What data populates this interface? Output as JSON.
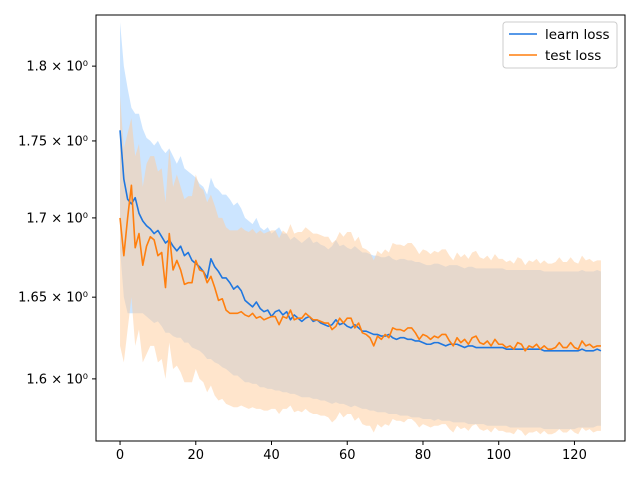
{
  "chart_data": {
    "type": "line",
    "title": "",
    "xlabel": "",
    "ylabel": "",
    "xlim": [
      -6.35,
      133.35
    ],
    "ylim": [
      1.563,
      1.835
    ],
    "yscale": "log",
    "grid": false,
    "legend_position": "top-right",
    "x_ticks": [
      0,
      20,
      40,
      60,
      80,
      100,
      120
    ],
    "x_tick_labels": [
      "0",
      "20",
      "40",
      "60",
      "80",
      "100",
      "120"
    ],
    "y_ticks": [
      1.6,
      1.65,
      1.7,
      1.75,
      1.8
    ],
    "y_tick_labels": [
      "1.6 × 10⁰",
      "1.65 × 10⁰",
      "1.7 × 10⁰",
      "1.75 × 10⁰",
      "1.8 × 10⁰"
    ],
    "x_start": 0,
    "x_step": 1,
    "series": [
      {
        "name": "learn loss",
        "color": "#1f77e0",
        "fill_color": "#99ccff",
        "values": [
          1.757,
          1.725,
          1.712,
          1.709,
          1.713,
          1.703,
          1.698,
          1.695,
          1.693,
          1.69,
          1.692,
          1.688,
          1.684,
          1.686,
          1.682,
          1.679,
          1.682,
          1.676,
          1.678,
          1.673,
          1.671,
          1.669,
          1.666,
          1.662,
          1.674,
          1.669,
          1.666,
          1.662,
          1.662,
          1.659,
          1.655,
          1.657,
          1.654,
          1.648,
          1.646,
          1.644,
          1.647,
          1.643,
          1.641,
          1.642,
          1.638,
          1.641,
          1.642,
          1.639,
          1.641,
          1.636,
          1.639,
          1.637,
          1.635,
          1.637,
          1.638,
          1.635,
          1.636,
          1.634,
          1.633,
          1.632,
          1.633,
          1.636,
          1.633,
          1.634,
          1.632,
          1.631,
          1.633,
          1.631,
          1.629,
          1.629,
          1.628,
          1.627,
          1.627,
          1.626,
          1.626,
          1.627,
          1.625,
          1.624,
          1.625,
          1.625,
          1.624,
          1.624,
          1.623,
          1.623,
          1.622,
          1.621,
          1.621,
          1.622,
          1.622,
          1.621,
          1.62,
          1.621,
          1.621,
          1.621,
          1.62,
          1.619,
          1.62,
          1.62,
          1.619,
          1.619,
          1.619,
          1.619,
          1.619,
          1.619,
          1.619,
          1.619,
          1.618,
          1.618,
          1.618,
          1.618,
          1.618,
          1.618,
          1.618,
          1.618,
          1.618,
          1.618,
          1.617,
          1.617,
          1.617,
          1.617,
          1.617,
          1.617,
          1.617,
          1.617,
          1.617,
          1.617,
          1.618,
          1.617,
          1.617,
          1.617,
          1.618,
          1.617
        ],
        "lower": [
          1.68,
          1.65,
          1.64,
          1.64,
          1.64,
          1.64,
          1.64,
          1.638,
          1.636,
          1.634,
          1.635,
          1.632,
          1.628,
          1.628,
          1.626,
          1.625,
          1.625,
          1.622,
          1.622,
          1.619,
          1.618,
          1.617,
          1.615,
          1.612,
          1.612,
          1.61,
          1.609,
          1.607,
          1.606,
          1.604,
          1.602,
          1.602,
          1.6,
          1.598,
          1.598,
          1.597,
          1.597,
          1.595,
          1.595,
          1.594,
          1.594,
          1.593,
          1.593,
          1.592,
          1.592,
          1.591,
          1.591,
          1.59,
          1.589,
          1.589,
          1.589,
          1.588,
          1.588,
          1.587,
          1.587,
          1.586,
          1.585,
          1.586,
          1.585,
          1.585,
          1.584,
          1.583,
          1.584,
          1.583,
          1.582,
          1.582,
          1.581,
          1.581,
          1.58,
          1.58,
          1.58,
          1.579,
          1.579,
          1.579,
          1.578,
          1.578,
          1.578,
          1.577,
          1.577,
          1.577,
          1.576,
          1.576,
          1.576,
          1.575,
          1.576,
          1.575,
          1.575,
          1.575,
          1.574,
          1.574,
          1.574,
          1.574,
          1.573,
          1.573,
          1.573,
          1.573,
          1.573,
          1.572,
          1.572,
          1.572,
          1.572,
          1.572,
          1.572,
          1.571,
          1.571,
          1.571,
          1.571,
          1.571,
          1.571,
          1.571,
          1.571,
          1.571,
          1.57,
          1.57,
          1.57,
          1.57,
          1.57,
          1.57,
          1.57,
          1.57,
          1.57,
          1.571,
          1.571,
          1.571,
          1.571,
          1.571,
          1.572,
          1.572
        ],
        "upper": [
          1.83,
          1.8,
          1.785,
          1.772,
          1.768,
          1.768,
          1.758,
          1.752,
          1.75,
          1.747,
          1.75,
          1.745,
          1.742,
          1.745,
          1.74,
          1.735,
          1.74,
          1.732,
          1.73,
          1.728,
          1.726,
          1.722,
          1.72,
          1.715,
          1.726,
          1.72,
          1.718,
          1.715,
          1.715,
          1.712,
          1.708,
          1.71,
          1.706,
          1.7,
          1.698,
          1.696,
          1.7,
          1.694,
          1.692,
          1.694,
          1.69,
          1.692,
          1.694,
          1.69,
          1.69,
          1.686,
          1.688,
          1.686,
          1.684,
          1.686,
          1.688,
          1.684,
          1.685,
          1.683,
          1.682,
          1.68,
          1.682,
          1.686,
          1.682,
          1.683,
          1.681,
          1.68,
          1.682,
          1.68,
          1.678,
          1.678,
          1.677,
          1.676,
          1.676,
          1.675,
          1.675,
          1.676,
          1.674,
          1.673,
          1.674,
          1.674,
          1.673,
          1.673,
          1.672,
          1.672,
          1.671,
          1.67,
          1.67,
          1.671,
          1.671,
          1.67,
          1.669,
          1.67,
          1.67,
          1.67,
          1.669,
          1.668,
          1.669,
          1.669,
          1.668,
          1.668,
          1.668,
          1.668,
          1.668,
          1.668,
          1.668,
          1.668,
          1.667,
          1.667,
          1.667,
          1.667,
          1.667,
          1.667,
          1.667,
          1.667,
          1.667,
          1.667,
          1.666,
          1.666,
          1.666,
          1.666,
          1.666,
          1.666,
          1.666,
          1.666,
          1.666,
          1.666,
          1.667,
          1.666,
          1.666,
          1.666,
          1.667,
          1.666
        ]
      },
      {
        "name": "test loss",
        "color": "#ff7f0e",
        "fill_color": "#ffcc99",
        "values": [
          1.7,
          1.676,
          1.7,
          1.721,
          1.681,
          1.69,
          1.67,
          1.682,
          1.688,
          1.686,
          1.676,
          1.678,
          1.656,
          1.69,
          1.667,
          1.673,
          1.667,
          1.658,
          1.659,
          1.659,
          1.673,
          1.667,
          1.666,
          1.659,
          1.663,
          1.656,
          1.648,
          1.649,
          1.642,
          1.64,
          1.64,
          1.64,
          1.641,
          1.639,
          1.638,
          1.64,
          1.637,
          1.638,
          1.636,
          1.637,
          1.638,
          1.638,
          1.633,
          1.638,
          1.637,
          1.642,
          1.636,
          1.637,
          1.637,
          1.64,
          1.638,
          1.636,
          1.636,
          1.635,
          1.634,
          1.634,
          1.63,
          1.632,
          1.637,
          1.634,
          1.637,
          1.637,
          1.631,
          1.634,
          1.628,
          1.627,
          1.625,
          1.62,
          1.626,
          1.624,
          1.627,
          1.625,
          1.631,
          1.63,
          1.63,
          1.629,
          1.631,
          1.631,
          1.628,
          1.624,
          1.627,
          1.626,
          1.624,
          1.626,
          1.625,
          1.627,
          1.627,
          1.623,
          1.62,
          1.625,
          1.622,
          1.624,
          1.621,
          1.625,
          1.626,
          1.622,
          1.621,
          1.623,
          1.62,
          1.624,
          1.621,
          1.621,
          1.619,
          1.62,
          1.618,
          1.622,
          1.621,
          1.617,
          1.62,
          1.619,
          1.621,
          1.618,
          1.62,
          1.618,
          1.618,
          1.619,
          1.622,
          1.619,
          1.619,
          1.622,
          1.619,
          1.618,
          1.623,
          1.62,
          1.621,
          1.619,
          1.62,
          1.62
        ],
        "lower": [
          1.62,
          1.61,
          1.63,
          1.65,
          1.62,
          1.63,
          1.61,
          1.615,
          1.62,
          1.62,
          1.61,
          1.612,
          1.6,
          1.622,
          1.606,
          1.608,
          1.604,
          1.598,
          1.598,
          1.598,
          1.606,
          1.6,
          1.598,
          1.592,
          1.596,
          1.59,
          1.587,
          1.588,
          1.585,
          1.584,
          1.583,
          1.583,
          1.584,
          1.583,
          1.582,
          1.583,
          1.582,
          1.582,
          1.581,
          1.581,
          1.582,
          1.582,
          1.579,
          1.582,
          1.582,
          1.584,
          1.58,
          1.581,
          1.58,
          1.582,
          1.58,
          1.579,
          1.579,
          1.578,
          1.578,
          1.577,
          1.574,
          1.576,
          1.58,
          1.577,
          1.579,
          1.579,
          1.575,
          1.577,
          1.573,
          1.572,
          1.572,
          1.568,
          1.573,
          1.571,
          1.573,
          1.572,
          1.576,
          1.575,
          1.575,
          1.574,
          1.576,
          1.576,
          1.574,
          1.571,
          1.573,
          1.572,
          1.571,
          1.572,
          1.572,
          1.573,
          1.573,
          1.57,
          1.568,
          1.572,
          1.57,
          1.571,
          1.569,
          1.572,
          1.573,
          1.57,
          1.569,
          1.57,
          1.568,
          1.571,
          1.569,
          1.569,
          1.568,
          1.568,
          1.567,
          1.57,
          1.569,
          1.566,
          1.568,
          1.568,
          1.569,
          1.567,
          1.569,
          1.567,
          1.567,
          1.568,
          1.57,
          1.568,
          1.568,
          1.57,
          1.568,
          1.567,
          1.571,
          1.569,
          1.57,
          1.568,
          1.569,
          1.569
        ],
        "upper": [
          1.78,
          1.745,
          1.755,
          1.765,
          1.74,
          1.748,
          1.72,
          1.735,
          1.74,
          1.74,
          1.73,
          1.732,
          1.71,
          1.745,
          1.72,
          1.728,
          1.72,
          1.712,
          1.714,
          1.714,
          1.728,
          1.72,
          1.718,
          1.71,
          1.715,
          1.708,
          1.7,
          1.7,
          1.694,
          1.692,
          1.692,
          1.692,
          1.694,
          1.692,
          1.691,
          1.693,
          1.69,
          1.692,
          1.69,
          1.691,
          1.692,
          1.692,
          1.687,
          1.692,
          1.69,
          1.696,
          1.69,
          1.691,
          1.691,
          1.694,
          1.692,
          1.69,
          1.69,
          1.689,
          1.688,
          1.688,
          1.684,
          1.686,
          1.691,
          1.688,
          1.691,
          1.691,
          1.685,
          1.688,
          1.681,
          1.68,
          1.678,
          1.673,
          1.679,
          1.677,
          1.68,
          1.678,
          1.684,
          1.683,
          1.683,
          1.682,
          1.684,
          1.684,
          1.681,
          1.677,
          1.68,
          1.679,
          1.677,
          1.679,
          1.678,
          1.68,
          1.68,
          1.676,
          1.673,
          1.678,
          1.675,
          1.677,
          1.674,
          1.678,
          1.679,
          1.675,
          1.674,
          1.676,
          1.673,
          1.677,
          1.674,
          1.674,
          1.672,
          1.673,
          1.671,
          1.675,
          1.674,
          1.67,
          1.673,
          1.672,
          1.674,
          1.671,
          1.673,
          1.671,
          1.671,
          1.672,
          1.675,
          1.672,
          1.672,
          1.675,
          1.672,
          1.671,
          1.676,
          1.673,
          1.674,
          1.672,
          1.673,
          1.673
        ]
      }
    ]
  }
}
